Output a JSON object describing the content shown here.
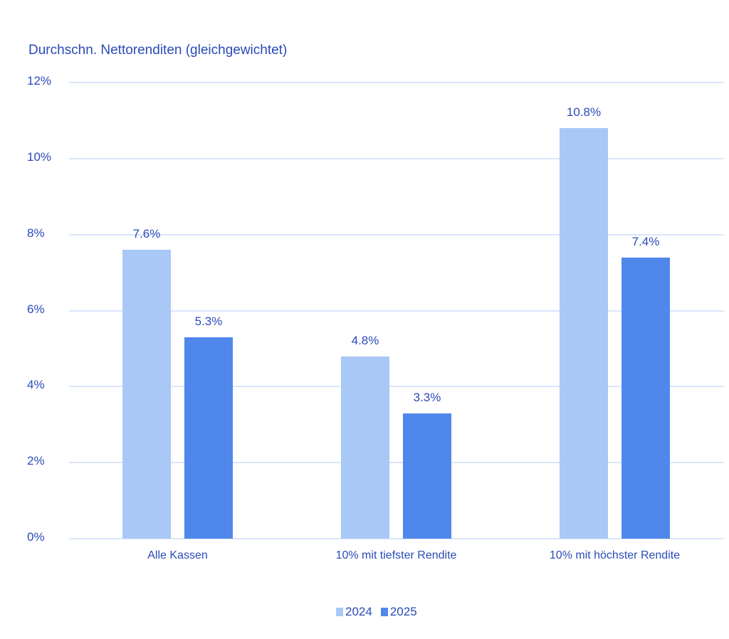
{
  "chart_data": {
    "type": "bar",
    "title": "Durchschn. Nettorenditen (gleichgewichtet)",
    "categories": [
      "Alle Kassen",
      "10% mit tiefster Rendite",
      "10% mit höchster Rendite"
    ],
    "series": [
      {
        "name": "2024",
        "values": [
          7.6,
          4.8,
          10.8
        ],
        "labels": [
          "7.6%",
          "4.8%",
          "10.8%"
        ],
        "color": "#a9c8f6"
      },
      {
        "name": "2025",
        "values": [
          5.3,
          3.3,
          7.4
        ],
        "labels": [
          "5.3%",
          "3.3%",
          "7.4%"
        ],
        "color": "#5087eb"
      }
    ],
    "xlabel": "",
    "ylabel": "",
    "ylim": [
      0,
      12
    ],
    "yticks": [
      "0%",
      "2%",
      "4%",
      "6%",
      "8%",
      "10%",
      "12%"
    ],
    "grid": true,
    "legend_position": "bottom"
  },
  "legend": {
    "items": [
      "2024",
      "2025"
    ]
  }
}
